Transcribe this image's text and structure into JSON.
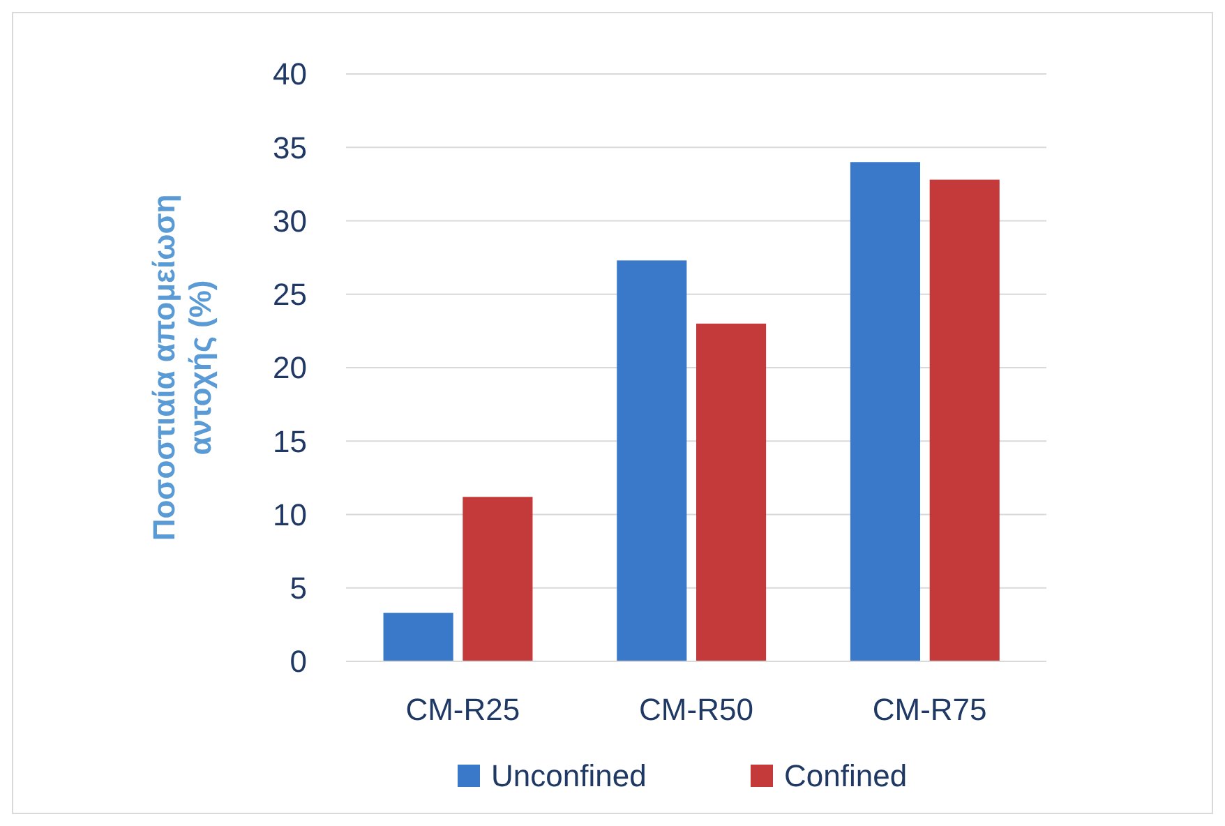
{
  "chart_data": {
    "type": "bar",
    "ylabel": "Ποσοστιαία απομείωση\nαντοχής  (%)",
    "categories": [
      "CM-R25",
      "CM-R50",
      "CM-R75"
    ],
    "series": [
      {
        "name": "Unconfined",
        "color": "#3a78c9",
        "values": [
          3.3,
          27.3,
          34.0
        ]
      },
      {
        "name": "Confined",
        "color": "#c4393a",
        "values": [
          11.2,
          23.0,
          32.8
        ]
      }
    ],
    "ylim": [
      0,
      40
    ],
    "yticks": [
      0,
      5,
      10,
      15,
      20,
      25,
      30,
      35,
      40
    ],
    "grid": "y",
    "legend": "bottom"
  }
}
